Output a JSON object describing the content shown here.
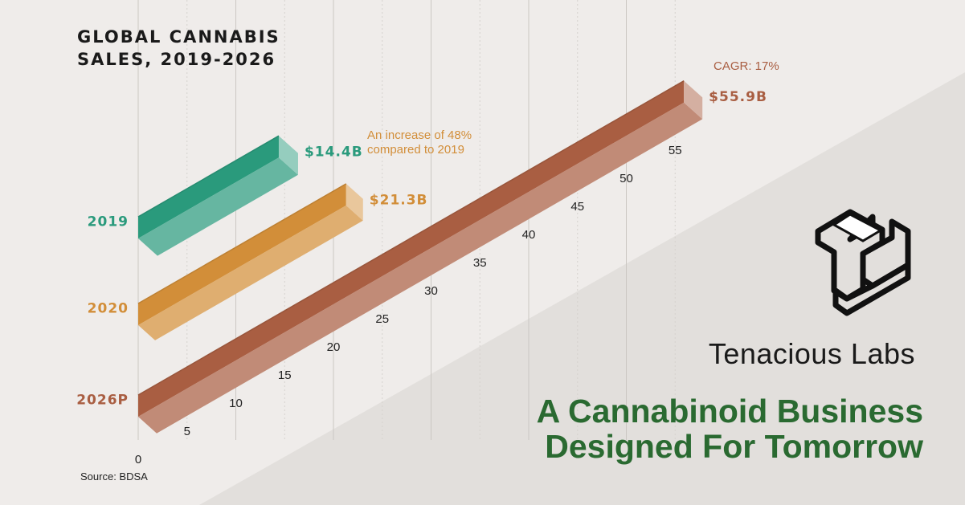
{
  "chart_data": {
    "type": "bar",
    "orientation": "horizontal-isometric",
    "title": "GLOBAL CANNABIS SALES, 2019-2026",
    "categories": [
      "2019",
      "2020",
      "2026P"
    ],
    "values": [
      14.4,
      21.3,
      55.9
    ],
    "value_labels": [
      "$14.4B",
      "$21.3B",
      "$55.9B"
    ],
    "colors": [
      "#2a9a7c",
      "#d28e39",
      "#a95e42"
    ],
    "x_ticks": [
      "0",
      "5",
      "10",
      "15",
      "20",
      "25",
      "30",
      "35",
      "40",
      "45",
      "50",
      "55"
    ],
    "xlim": [
      0,
      55
    ],
    "annotations": {
      "increase_2020": "An increase of 48% compared to 2019",
      "cagr": "CAGR: 17%"
    },
    "grid": true
  },
  "source": "Source: BDSA",
  "brand": {
    "name": "Tenacious Labs",
    "tagline_line1": "A Cannabinoid Business",
    "tagline_line2": "Designed For Tomorrow",
    "logo_icon": "tl-isometric-logo-icon"
  }
}
